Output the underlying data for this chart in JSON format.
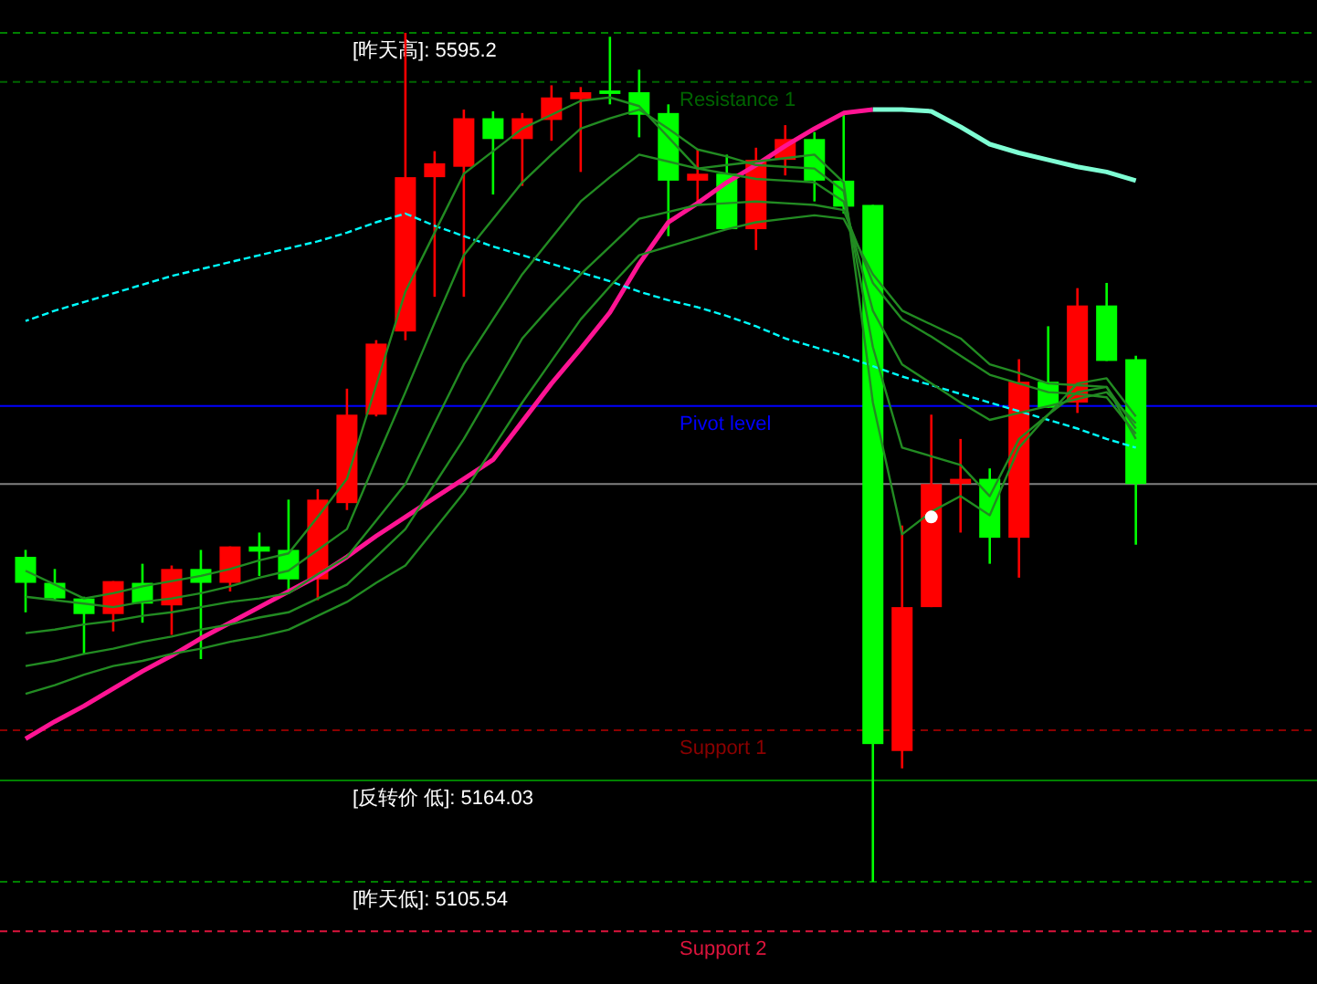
{
  "chart_data": {
    "type": "candlestick",
    "tick_labels": false,
    "ylim": [
      5046.6,
      5614.2
    ],
    "categories": [
      null,
      null,
      null,
      null,
      null,
      null,
      null,
      null,
      null,
      null,
      null,
      null,
      null,
      null,
      null,
      null,
      null,
      null,
      null,
      null,
      null,
      null,
      null,
      null,
      null,
      null,
      null,
      null,
      null,
      null,
      null,
      null,
      null,
      null,
      null,
      null,
      null,
      null,
      null
    ],
    "ohlc": [
      [
        5293,
        5297,
        5261,
        5278
      ],
      [
        5278,
        5286,
        5268,
        5269
      ],
      [
        5269,
        5270,
        5237,
        5260
      ],
      [
        5260,
        5279,
        5250,
        5279
      ],
      [
        5278,
        5289,
        5255,
        5266
      ],
      [
        5265,
        5288,
        5248,
        5286
      ],
      [
        5286,
        5297,
        5234,
        5278
      ],
      [
        5278,
        5299,
        5273,
        5299
      ],
      [
        5299,
        5307,
        5282,
        5296
      ],
      [
        5297,
        5326,
        5273,
        5280
      ],
      [
        5280,
        5332,
        5268,
        5326
      ],
      [
        5324,
        5390,
        5320,
        5375
      ],
      [
        5375,
        5418,
        5374,
        5416
      ],
      [
        5423,
        5595.2,
        5418,
        5512
      ],
      [
        5512,
        5527,
        5443,
        5520
      ],
      [
        5518,
        5551,
        5443,
        5546
      ],
      [
        5546,
        5550,
        5502,
        5534
      ],
      [
        5534,
        5549,
        5507,
        5546
      ],
      [
        5545,
        5565,
        5533,
        5558
      ],
      [
        5557,
        5564,
        5515,
        5561
      ],
      [
        5562,
        5593,
        5554,
        5560
      ],
      [
        5561,
        5574,
        5535,
        5548
      ],
      [
        5549,
        5554,
        5478,
        5510
      ],
      [
        5510,
        5528,
        5497,
        5514
      ],
      [
        5514,
        5525,
        5482,
        5482
      ],
      [
        5482,
        5529,
        5470,
        5522
      ],
      [
        5522,
        5542,
        5513,
        5534
      ],
      [
        5534,
        5538,
        5498,
        5510
      ],
      [
        5510,
        5549,
        5491,
        5495
      ],
      [
        5496,
        5496,
        5105.54,
        5185
      ],
      [
        5181,
        5311,
        5171,
        5264
      ],
      [
        5264,
        5375,
        5264,
        5335
      ],
      [
        5335,
        5361,
        5307,
        5338
      ],
      [
        5338,
        5344,
        5289,
        5304
      ],
      [
        5304,
        5407,
        5281,
        5394
      ],
      [
        5394,
        5426,
        5379,
        5379
      ],
      [
        5382,
        5448,
        5376,
        5438
      ],
      [
        5438,
        5451,
        5406,
        5406
      ],
      [
        5407,
        5409,
        5300,
        5335
      ]
    ],
    "colors": [
      "#00ff00",
      "#00ff00",
      "#00ff00",
      "#ff0000",
      "#00ff00",
      "#ff0000",
      "#00ff00",
      "#ff0000",
      "#00ff00",
      "#00ff00",
      "#ff0000",
      "#ff0000",
      "#ff0000",
      "#ff0000",
      "#ff0000",
      "#ff0000",
      "#00ff00",
      "#ff0000",
      "#ff0000",
      "#ff0000",
      "#00ff00",
      "#00ff00",
      "#00ff00",
      "#ff0000",
      "#00ff00",
      "#ff0000",
      "#ff0000",
      "#00ff00",
      "#00ff00",
      "#00ff00",
      "#ff0000",
      "#ff0000",
      "#ff0000",
      "#00ff00",
      "#ff0000",
      "#00ff00",
      "#ff0000",
      "#00ff00",
      "#00ff00"
    ],
    "series": [
      {
        "type": "line",
        "color": "#ff1493",
        "values": [
          5188,
          5198,
          5207,
          5217,
          5227,
          5236,
          5246,
          5255,
          5264,
          5273,
          5282,
          5293,
          5305,
          5316,
          5327,
          5338,
          5349,
          5371,
          5393,
          5413,
          5434,
          5462,
          5486,
          5497,
          5509,
          5519,
          5530,
          5540,
          5549,
          5551,
          null,
          null,
          null,
          null,
          null,
          null,
          null,
          null,
          null
        ]
      },
      {
        "type": "line",
        "color": "#7fffd4",
        "values": [
          null,
          null,
          null,
          null,
          null,
          null,
          null,
          null,
          null,
          null,
          null,
          null,
          null,
          null,
          null,
          null,
          null,
          null,
          null,
          null,
          null,
          null,
          null,
          null,
          null,
          null,
          null,
          null,
          null,
          5551,
          5551,
          5550,
          5541,
          5531,
          5526,
          5522,
          5518,
          5515,
          5510
        ]
      },
      {
        "type": "line",
        "color": "#00ffff",
        "line_style": "dashed",
        "values": [
          5429,
          5435,
          5440,
          5445,
          5450,
          5455,
          5459,
          5463,
          5467,
          5471,
          5475,
          5480,
          5486,
          5491,
          5484,
          5478,
          5472,
          5467,
          5462,
          5457,
          5452,
          5446,
          5441,
          5437,
          5432,
          5426,
          5419,
          5414,
          5409,
          5403,
          5397,
          5392,
          5387,
          5382,
          5377,
          5372,
          5367,
          5361,
          5356
        ]
      },
      {
        "type": "line",
        "color": "#228b22",
        "values": [
          5285,
          5277,
          5269,
          5272,
          5276,
          5279,
          5282,
          5286,
          5291,
          5295,
          5316,
          5338,
          5392,
          5446,
          5480,
          5514,
          5527,
          5540,
          5548,
          5556,
          5558,
          5553,
          5535,
          5517,
          5519,
          5521,
          5523,
          5525,
          5509,
          5382,
          5306,
          5319,
          5328,
          5317,
          5356,
          5375,
          5393,
          5396,
          5374
        ]
      },
      {
        "type": "line",
        "color": "#228b22",
        "values": [
          5270,
          5268,
          5266,
          5264,
          5267,
          5269,
          5272,
          5276,
          5281,
          5285,
          5297,
          5309,
          5349,
          5388,
          5428,
          5467,
          5488,
          5509,
          5525,
          5540,
          5546,
          5551,
          5540,
          5528,
          5524,
          5519,
          5518,
          5517,
          5504,
          5414,
          5356,
          5351,
          5346,
          5328,
          5361,
          5375,
          5388,
          5391,
          5367
        ]
      },
      {
        "type": "line",
        "color": "#228b22",
        "values": [
          5249,
          5251,
          5254,
          5256,
          5259,
          5261,
          5264,
          5267,
          5269,
          5272,
          5283,
          5293,
          5314,
          5335,
          5370,
          5404,
          5430,
          5456,
          5477,
          5498,
          5512,
          5525,
          5521,
          5517,
          5514,
          5511,
          5510,
          5509,
          5498,
          5435,
          5404,
          5393,
          5382,
          5372,
          5376,
          5380,
          5384,
          5388,
          5370
        ]
      },
      {
        "type": "line",
        "color": "#228b22",
        "values": [
          5230,
          5233,
          5237,
          5240,
          5244,
          5247,
          5251,
          5254,
          5258,
          5261,
          5269,
          5277,
          5293,
          5309,
          5335,
          5361,
          5390,
          5419,
          5438,
          5456,
          5472,
          5488,
          5492,
          5496,
          5497,
          5498,
          5497,
          5496,
          5493,
          5451,
          5430,
          5420,
          5409,
          5398,
          5393,
          5388,
          5387,
          5385,
          5364
        ]
      },
      {
        "type": "line",
        "color": "#228b22",
        "values": [
          5214,
          5219,
          5225,
          5230,
          5233,
          5237,
          5240,
          5244,
          5247,
          5251,
          5259,
          5267,
          5278,
          5288,
          5309,
          5330,
          5356,
          5382,
          5406,
          5430,
          5449,
          5467,
          5472,
          5477,
          5482,
          5486,
          5488,
          5490,
          5488,
          5456,
          5435,
          5427,
          5419,
          5404,
          5399,
          5393,
          5392,
          5391,
          5361
        ]
      },
      {
        "type": "scatter",
        "color": "#ffffff",
        "marker": "circle",
        "values": [
          null,
          null,
          null,
          null,
          null,
          null,
          null,
          null,
          null,
          null,
          null,
          null,
          null,
          null,
          null,
          null,
          null,
          null,
          null,
          null,
          null,
          null,
          null,
          null,
          null,
          null,
          null,
          null,
          null,
          null,
          null,
          5316,
          null,
          null,
          null,
          null,
          null,
          null,
          null
        ]
      }
    ],
    "ref_lines": [
      {
        "axis": "y",
        "value": 5595.2,
        "label": "[昨天高]: 5595.2",
        "color": "#008000",
        "line_style": "dashed"
      },
      {
        "axis": "y",
        "value": 5567,
        "label": "Resistance 1",
        "color": "#006400",
        "line_style": "dashed"
      },
      {
        "axis": "y",
        "value": 5380,
        "label": "Pivot level",
        "color": "#0000ff",
        "line_style": "solid"
      },
      {
        "axis": "y",
        "value": 5335,
        "color": "#808080",
        "line_style": "solid"
      },
      {
        "axis": "y",
        "value": 5193,
        "label": "Support 1",
        "color": "#8b0000",
        "line_style": "dashed"
      },
      {
        "axis": "y",
        "value": 5164.03,
        "label": "[反转价 低]: 5164.03",
        "color": "#008000",
        "line_style": "solid"
      },
      {
        "axis": "y",
        "value": 5105.54,
        "label": "[昨天低]: 5105.54",
        "color": "#008000",
        "line_style": "dashed"
      },
      {
        "axis": "y",
        "value": 5077,
        "label": "Support 2",
        "color": "#dc143c",
        "line_style": "dashed"
      }
    ]
  }
}
